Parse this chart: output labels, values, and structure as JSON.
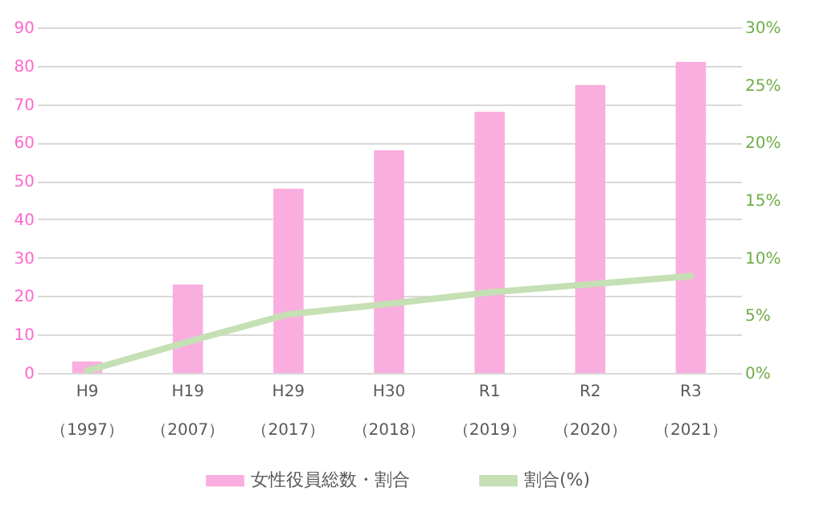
{
  "chart_data": {
    "type": "bar",
    "categories": [
      "H9\n（1997）",
      "H19\n（2007）",
      "H29\n（2017）",
      "H30\n（2018）",
      "R1\n（2019）",
      "R2\n（2020）",
      "R3\n（2021）"
    ],
    "series": [
      {
        "name": "女性役員総数・割合",
        "color": "#f9aedf",
        "values": [
          3,
          23,
          48,
          58,
          68,
          75,
          81
        ]
      },
      {
        "name": "割合(%)",
        "color": "#c5e0b4",
        "type": "line",
        "axis": "y2",
        "values": [
          0.2,
          2.7,
          5.1,
          6.0,
          7.0,
          7.7,
          8.4
        ]
      }
    ],
    "ylim": [
      0,
      90
    ],
    "yticks": [
      0,
      10,
      20,
      30,
      40,
      50,
      60,
      70,
      80,
      90
    ],
    "y2lim": [
      0,
      30
    ],
    "y2ticks": [
      {
        "value": 0,
        "label": "0%"
      },
      {
        "value": 5,
        "label": "5%"
      },
      {
        "value": 10,
        "label": "10%"
      },
      {
        "value": 15,
        "label": "15%"
      },
      {
        "value": 20,
        "label": "20%"
      },
      {
        "value": 25,
        "label": "25%"
      },
      {
        "value": 30,
        "label": "30%"
      }
    ],
    "grid": "y",
    "legend": "bottom"
  }
}
